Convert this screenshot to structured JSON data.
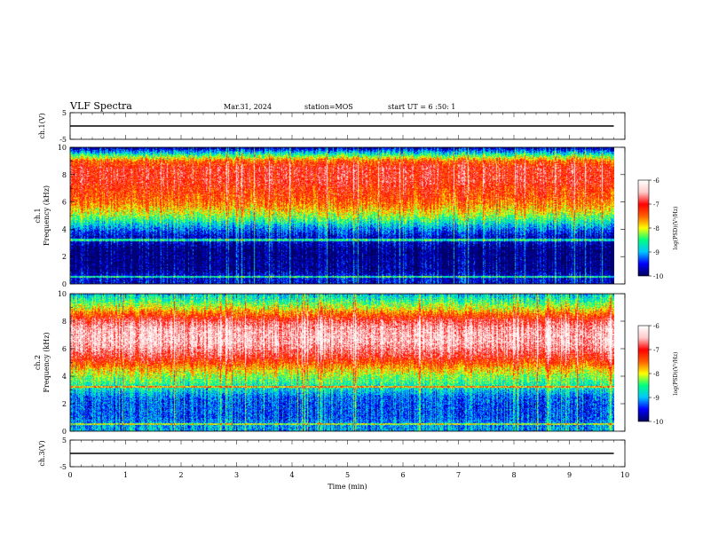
{
  "header": {
    "title": "VLF Spectra",
    "date": "Mar.31, 2024",
    "station": "station=MOS",
    "start": "start UT =  6 :50: 1"
  },
  "colors": {
    "scale": [
      "#000060",
      "#0000ff",
      "#00c8ff",
      "#00ff80",
      "#ffff00",
      "#ff6000",
      "#ff0000",
      "#ffc8c8",
      "#ffffff"
    ],
    "trace": "#000000",
    "frame": "#000000"
  },
  "chart_data": [
    {
      "type": "line",
      "ylabel": "ch.1(V)",
      "ylim": [
        -5,
        5
      ],
      "yticks": [
        "5",
        "-5"
      ],
      "xlim": [
        0,
        10
      ],
      "series": [
        {
          "x": [
            0,
            9.8
          ],
          "values": [
            0,
            0
          ]
        }
      ]
    },
    {
      "type": "heatmap",
      "ylabel": "ch.1\nFrequency (kHz)",
      "ylim": [
        0,
        10
      ],
      "yticks": [
        "0",
        "2",
        "4",
        "6",
        "8",
        "10"
      ],
      "xlim": [
        0,
        10
      ],
      "x_extent": [
        0,
        9.8
      ],
      "profile": {
        "freq_khz": [
          0,
          0.5,
          1,
          1.5,
          2,
          2.5,
          3,
          3.5,
          4,
          4.5,
          5,
          5.5,
          6,
          6.5,
          7,
          7.5,
          8,
          8.5,
          9,
          9.5,
          10
        ],
        "log_psd": [
          -9.6,
          -9.6,
          -9.9,
          -9.9,
          -9.95,
          -9.95,
          -9.7,
          -9.6,
          -9.2,
          -8.7,
          -8.2,
          -7.8,
          -7.5,
          -7.3,
          -7.2,
          -7.0,
          -7.0,
          -7.0,
          -7.4,
          -8.6,
          -9.8
        ]
      },
      "colorbar": {
        "label": "log(PSD)(V²/Hz)",
        "range": [
          -10,
          -6
        ],
        "ticks": [
          "-6",
          "-7",
          "-8",
          "-9",
          "-10"
        ]
      }
    },
    {
      "type": "heatmap",
      "ylabel": "ch.2\nFrequency (kHz)",
      "ylim": [
        0,
        10
      ],
      "yticks": [
        "0",
        "2",
        "4",
        "6",
        "8",
        "10"
      ],
      "xlim": [
        0,
        10
      ],
      "x_extent": [
        0,
        9.8
      ],
      "profile": {
        "freq_khz": [
          0,
          0.5,
          1,
          1.5,
          2,
          2.5,
          3,
          3.5,
          4,
          4.5,
          5,
          5.5,
          6,
          6.5,
          7,
          7.5,
          8,
          8.5,
          9,
          9.5,
          10
        ],
        "log_psd": [
          -9.0,
          -9.1,
          -9.3,
          -9.3,
          -9.3,
          -9.2,
          -8.8,
          -8.5,
          -8.2,
          -7.8,
          -7.3,
          -6.9,
          -6.6,
          -6.4,
          -6.4,
          -6.5,
          -6.8,
          -7.4,
          -8.0,
          -8.5,
          -8.9
        ]
      },
      "colorbar": {
        "label": "log(PSD)(V²/Hz)",
        "range": [
          -10,
          -6
        ],
        "ticks": [
          "-6",
          "-7",
          "-8",
          "-9",
          "-10"
        ]
      }
    },
    {
      "type": "line",
      "ylabel": "ch.3(V)",
      "ylim": [
        -5,
        5
      ],
      "yticks": [
        "5",
        "-5"
      ],
      "xlim": [
        0,
        10
      ],
      "series": [
        {
          "x": [
            0,
            9.8
          ],
          "values": [
            0,
            0
          ]
        }
      ]
    }
  ],
  "xaxis": {
    "label": "Time (min)",
    "ticks": [
      "0",
      "1",
      "2",
      "3",
      "4",
      "5",
      "6",
      "7",
      "8",
      "9",
      "10"
    ]
  }
}
